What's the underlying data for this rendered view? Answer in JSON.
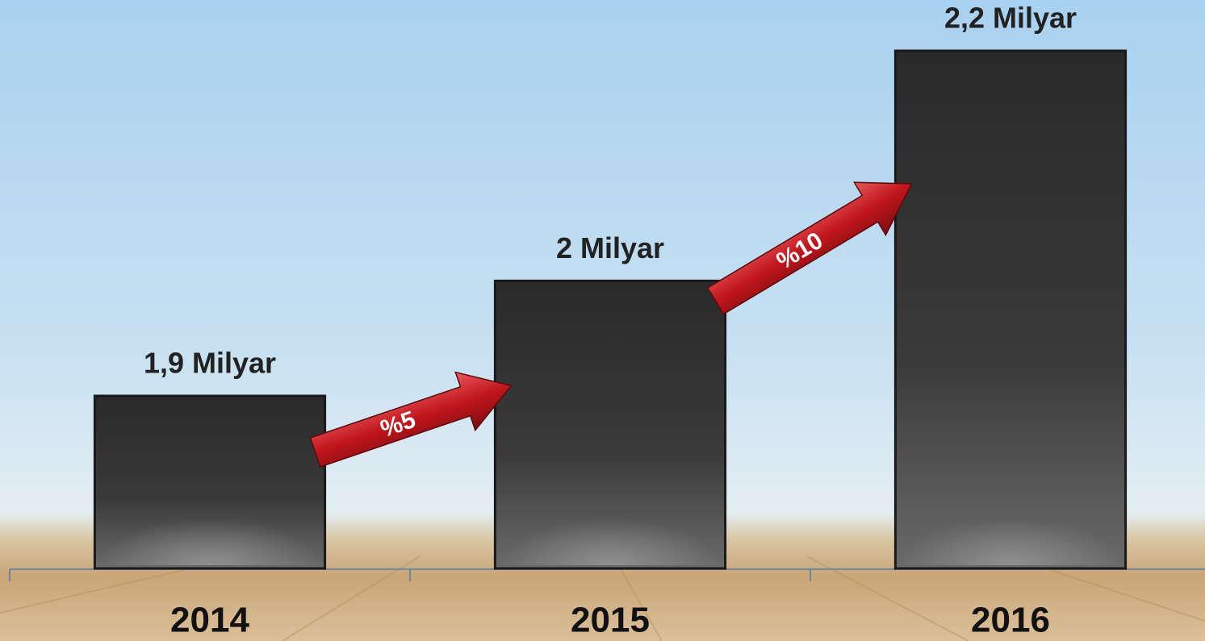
{
  "chart_data": {
    "type": "bar",
    "categories": [
      "2014",
      "2015",
      "2016"
    ],
    "values": [
      1.9,
      2,
      2.2
    ],
    "value_labels": [
      "1,9 Milyar",
      "2 Milyar",
      "2,2 Milyar"
    ],
    "ylim": [
      1.75,
      2.2
    ],
    "color": "#333333",
    "growth_labels": [
      "%5",
      "%10"
    ],
    "arrow_color": "#c0161c"
  }
}
